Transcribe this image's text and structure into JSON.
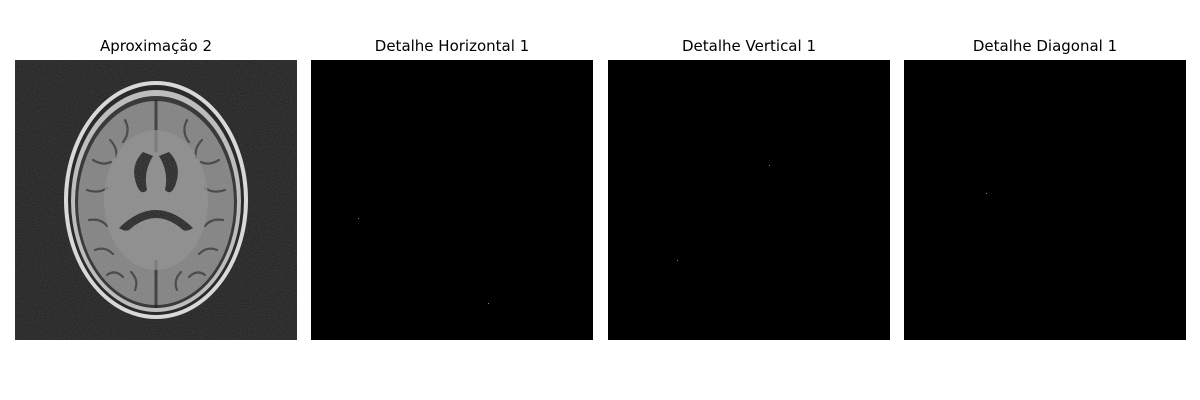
{
  "panels": [
    {
      "title": "Aproximação 2"
    },
    {
      "title": "Detalhe Horizontal 1"
    },
    {
      "title": "Detalhe Vertical 1"
    },
    {
      "title": "Detalhe Diagonal 1"
    }
  ],
  "colors": {
    "background": "#ffffff",
    "image_background": "#000000",
    "approximation_noise_background": "#1e1e1e",
    "brain_tissue": "#7a7a7a",
    "skull_ring": "#e6e6e6"
  }
}
